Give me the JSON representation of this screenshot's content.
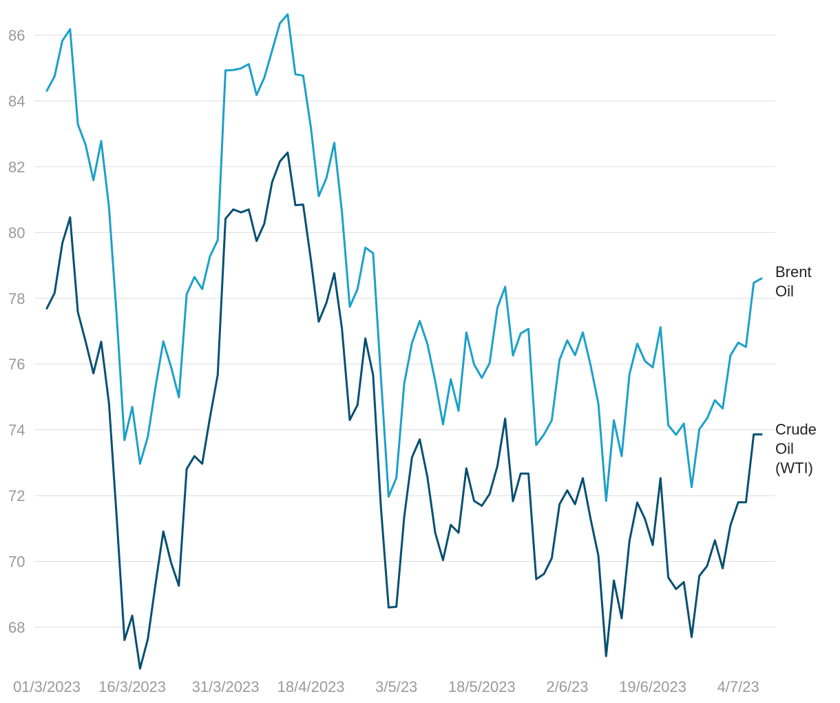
{
  "chart_data": {
    "type": "line",
    "title": "",
    "xlabel": "",
    "ylabel": "",
    "ylim": [
      66.8,
      86.8
    ],
    "yticks": [
      68,
      70,
      72,
      74,
      76,
      78,
      80,
      82,
      84,
      86
    ],
    "grid": true,
    "legend": "direct labels at right end of lines",
    "x_tick_labels": [
      "01/3/2023",
      "16/3/2023",
      "31/3/2023",
      "18/4/2023",
      "3/5/23",
      "18/5/2023",
      "2/6/23",
      "19/6/2023",
      "4/7/23"
    ],
    "x_tick_index": [
      0,
      11,
      23,
      34,
      45,
      56,
      67,
      78,
      89
    ],
    "series": [
      {
        "name": "Brent Oil",
        "label_lines": [
          "Brent",
          "Oil"
        ],
        "color": "#1ba0c8",
        "values": [
          84.31,
          84.75,
          85.83,
          86.18,
          83.29,
          82.66,
          81.59,
          82.78,
          80.77,
          77.45,
          73.69,
          74.7,
          72.97,
          73.79,
          75.32,
          76.69,
          75.91,
          74.99,
          78.12,
          78.65,
          78.28,
          79.27,
          79.77,
          84.93,
          84.94,
          84.99,
          85.12,
          84.18,
          84.71,
          85.53,
          86.36,
          86.63,
          84.81,
          84.77,
          83.18,
          81.1,
          81.66,
          82.73,
          80.61,
          77.74,
          78.28,
          79.54,
          79.37,
          75.62,
          71.97,
          72.54,
          75.39,
          76.64,
          77.31,
          76.61,
          75.48,
          74.17,
          75.54,
          74.58,
          76.96,
          75.99,
          75.58,
          76.03,
          77.71,
          78.35,
          76.26,
          76.93,
          77.07,
          73.54,
          73.86,
          74.29,
          76.13,
          76.72,
          76.27,
          76.96,
          75.96,
          74.79,
          71.84,
          74.29,
          73.2,
          75.69,
          76.62,
          76.09,
          75.9,
          77.12,
          74.14,
          73.85,
          74.19,
          72.26,
          74.02,
          74.35,
          74.9,
          74.65,
          76.26,
          76.65,
          76.52,
          78.47,
          78.6
        ]
      },
      {
        "name": "Crude Oil (WTI)",
        "label_lines": [
          "Crude",
          "Oil",
          "(WTI)"
        ],
        "color": "#074f72",
        "values": [
          77.69,
          78.16,
          79.68,
          80.46,
          77.58,
          76.68,
          75.72,
          76.68,
          74.8,
          71.33,
          67.61,
          68.35,
          66.74,
          67.64,
          69.33,
          70.91,
          69.96,
          69.26,
          72.81,
          73.2,
          72.97,
          74.37,
          75.67,
          80.42,
          80.7,
          80.61,
          80.7,
          79.74,
          80.27,
          81.53,
          82.16,
          82.43,
          80.83,
          80.85,
          79.16,
          77.29,
          77.87,
          78.76,
          77.07,
          74.3,
          74.76,
          76.78,
          75.66,
          71.66,
          68.6,
          68.62,
          71.34,
          73.16,
          73.71,
          72.56,
          70.87,
          70.04,
          71.11,
          70.87,
          72.83,
          71.84,
          71.69,
          72.05,
          72.9,
          74.34,
          71.83,
          72.67,
          72.67,
          69.46,
          69.62,
          70.1,
          71.74,
          72.16,
          71.74,
          72.53,
          71.29,
          70.17,
          67.12,
          69.42,
          68.27,
          70.62,
          71.79,
          71.29,
          70.5,
          72.53,
          69.51,
          69.16,
          69.37,
          67.7,
          69.56,
          69.86,
          70.64,
          69.79,
          71.1,
          71.8,
          71.8,
          73.86,
          73.86
        ]
      }
    ]
  }
}
